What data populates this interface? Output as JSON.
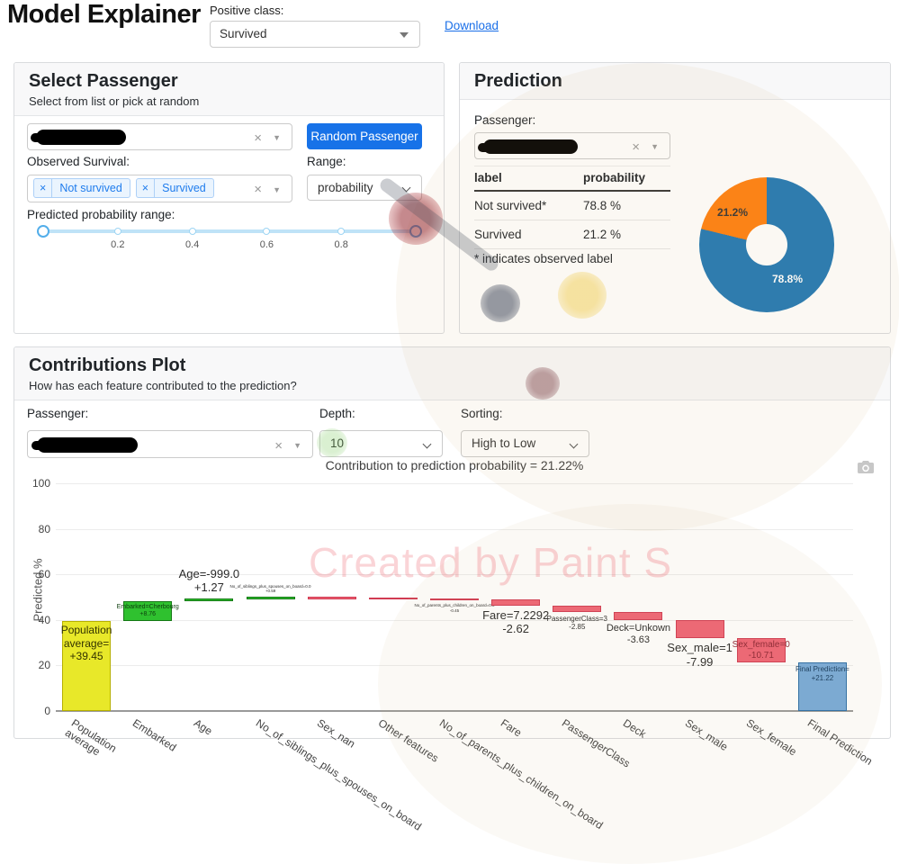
{
  "icons": {
    "clear": "×",
    "caret": "▼"
  },
  "colors": {
    "accent_blue": "#1772e8",
    "link": "#1a6fe8",
    "pie_blue": "#1f77b4",
    "pie_orange": "#ff7f0e",
    "bar_positive": "#2fc12f",
    "bar_positive_border": "#157815",
    "bar_negative": "#ef6375",
    "bar_negative_border": "#d13b52",
    "bar_base": "#e8e829",
    "bar_base_border": "#b6b000",
    "bar_total": "#76aad9",
    "bar_total_border": "#2a6da8"
  },
  "header": {
    "title": "Model Explainer",
    "positive_class_label": "Positive class:",
    "positive_class_value": "Survived",
    "download_label": "Download"
  },
  "select_passenger": {
    "title": "Select Passenger",
    "subtitle": "Select from list or pick at random",
    "random_button": "Random Passenger",
    "observed_label": "Observed Survival:",
    "tags": [
      "Not survived",
      "Survived"
    ],
    "range_label": "Range:",
    "range_value": "probability",
    "slider_label": "Predicted probability range:",
    "slider_ticks": [
      {
        "value": 0.2,
        "text": "0.2"
      },
      {
        "value": 0.4,
        "text": "0.4"
      },
      {
        "value": 0.6,
        "text": "0.6"
      },
      {
        "value": 0.8,
        "text": "0.8"
      }
    ]
  },
  "prediction": {
    "title": "Prediction",
    "passenger_label": "Passenger:",
    "table": {
      "headers": [
        "label",
        "probability"
      ],
      "rows": [
        [
          "Not survived*",
          "78.8 %"
        ],
        [
          "Survived",
          "21.2 %"
        ]
      ]
    },
    "footnote": "* indicates observed label"
  },
  "contributions": {
    "title": "Contributions Plot",
    "subtitle": "How has each feature contributed to the prediction?",
    "passenger_label": "Passenger:",
    "depth_label": "Depth:",
    "depth_value": "10",
    "sorting_label": "Sorting:",
    "sorting_value": "High to Low"
  },
  "chart_data": [
    {
      "type": "pie",
      "name": "prediction-probability-donut",
      "hole": 0.31,
      "slices": [
        {
          "name": "Not survived",
          "value": 78.8,
          "display": "78.8%",
          "color": "#1f77b4",
          "label_color": "#ffffff"
        },
        {
          "name": "Survived",
          "value": 21.2,
          "display": "21.2%",
          "color": "#ff7f0e",
          "label_color": "#333333"
        }
      ]
    },
    {
      "type": "bar",
      "subtype": "waterfall",
      "title": "Contribution to prediction probability = 21.22%",
      "ylabel": "Predicted %",
      "ylim": [
        0,
        100
      ],
      "yticks": [
        0,
        20,
        40,
        60,
        80,
        100
      ],
      "bars": [
        {
          "category": "Population\naverage",
          "kind": "base",
          "start": 0,
          "end": 39.45,
          "label_lines": [
            "Population",
            "average=",
            "+39.45"
          ],
          "label_pos": "inside-top",
          "label_size": 12,
          "label_color": "#333300"
        },
        {
          "category": "Embarked",
          "kind": "pos",
          "start": 39.45,
          "end": 48.21,
          "label_lines": [
            "Embarked=Cherbourg",
            "+8.76"
          ],
          "label_pos": "inside",
          "label_size": 7,
          "label_color": "#0d3d0d"
        },
        {
          "category": "Age",
          "kind": "pos",
          "start": 48.21,
          "end": 49.48,
          "label_lines": [
            "Age=-999.0",
            "+1.27"
          ],
          "label_pos": "above",
          "label_size": 13,
          "label_color": "#2a2a2a"
        },
        {
          "category": "No_of_siblings_plus_spouses_on_board",
          "kind": "pos",
          "start": 49.48,
          "end": 50.07,
          "label_lines": [
            "No_of_siblings_plus_spouses_on_board=0.0",
            "+0.59"
          ],
          "label_pos": "above",
          "label_size": 4.5,
          "label_color": "#2a2a2a"
        },
        {
          "category": "Sex_nan",
          "kind": "neg",
          "start": 50.07,
          "end": 49.82,
          "label_lines": [],
          "label_pos": "none",
          "label_size": 0,
          "label_color": "#2a2a2a"
        },
        {
          "category": "Other features",
          "kind": "neg",
          "start": 49.82,
          "end": 49.47,
          "label_lines": [],
          "label_pos": "none",
          "label_size": 0,
          "label_color": "#2a2a2a"
        },
        {
          "category": "No_of_parents_plus_children_on_board",
          "kind": "neg",
          "start": 49.47,
          "end": 49.02,
          "label_lines": [
            "No_of_parents_plus_children_on_board=0.0",
            "-0.45"
          ],
          "label_pos": "below",
          "label_size": 4.5,
          "label_color": "#2a2a2a"
        },
        {
          "category": "Fare",
          "kind": "neg",
          "start": 49.02,
          "end": 46.4,
          "label_lines": [
            "Fare=7.2292",
            "-2.62"
          ],
          "label_pos": "below",
          "label_size": 13,
          "label_color": "#2a2a2a"
        },
        {
          "category": "PassengerClass",
          "kind": "neg",
          "start": 46.4,
          "end": 43.55,
          "label_lines": [
            "PassengerClass=3",
            "-2.85"
          ],
          "label_pos": "below",
          "label_size": 8,
          "label_color": "#2a2a2a"
        },
        {
          "category": "Deck",
          "kind": "neg",
          "start": 43.55,
          "end": 39.92,
          "label_lines": [
            "Deck=Unkown",
            "-3.63"
          ],
          "label_pos": "below",
          "label_size": 11,
          "label_color": "#2a2a2a"
        },
        {
          "category": "Sex_male",
          "kind": "neg",
          "start": 39.92,
          "end": 31.93,
          "label_lines": [
            "Sex_male=1",
            "-7.99"
          ],
          "label_pos": "below",
          "label_size": 13,
          "label_color": "#2a2a2a"
        },
        {
          "category": "Sex_female",
          "kind": "neg",
          "start": 31.93,
          "end": 21.22,
          "label_lines": [
            "Sex_female=0",
            "-10.71"
          ],
          "label_pos": "inside",
          "label_size": 10,
          "label_color": "#8d2433"
        },
        {
          "category": "Final Prediction",
          "kind": "total",
          "start": 0,
          "end": 21.22,
          "label_lines": [
            "Final Prediction=",
            "+21.22"
          ],
          "label_pos": "inside-top",
          "label_size": 8,
          "label_color": "#12395e"
        }
      ]
    }
  ],
  "watermark": {
    "text": "Created by Paint S"
  }
}
